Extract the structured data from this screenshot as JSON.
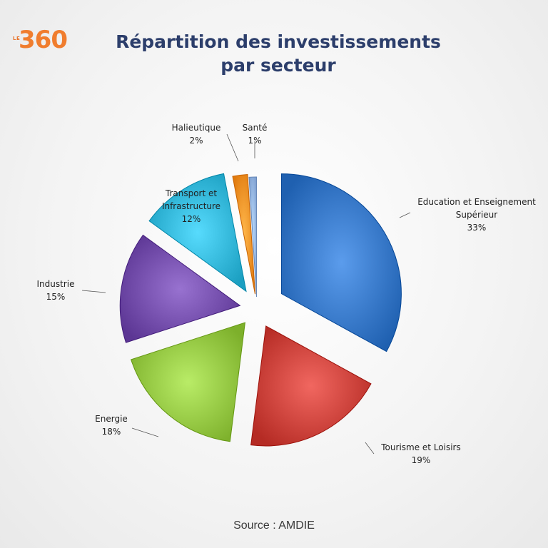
{
  "header": {
    "logo_prefix": "LE",
    "logo_number": "360",
    "title_line1": "Répartition des investissements",
    "title_line2": "par secteur"
  },
  "footer": {
    "source": "Source : AMDIE"
  },
  "chart_data": {
    "type": "pie",
    "title": "Répartition des investissements par secteur",
    "unit": "%",
    "slices": [
      {
        "label": "Education et Enseignement Supérieur",
        "label_lines": [
          "Education et Enseignement",
          "Supérieur"
        ],
        "value": 33,
        "value_label": "33%",
        "color": "#2e6fbf"
      },
      {
        "label": "Tourisme et Loisirs",
        "label_lines": [
          "Tourisme et Loisirs"
        ],
        "value": 19,
        "value_label": "19%",
        "color": "#c43a33"
      },
      {
        "label": "Energie",
        "label_lines": [
          "Energie"
        ],
        "value": 18,
        "value_label": "18%",
        "color": "#8cbf3a"
      },
      {
        "label": "Industrie",
        "label_lines": [
          "Industrie"
        ],
        "value": 15,
        "value_label": "15%",
        "color": "#6b45a3"
      },
      {
        "label": "Transport et Infrastructure",
        "label_lines": [
          "Transport et",
          "Infrastructure"
        ],
        "value": 12,
        "value_label": "12%",
        "color": "#2aaed0"
      },
      {
        "label": "Halieutique",
        "label_lines": [
          "Halieutique"
        ],
        "value": 2,
        "value_label": "2%",
        "color": "#f08a1e"
      },
      {
        "label": "Santé",
        "label_lines": [
          "Santé"
        ],
        "value": 1,
        "value_label": "1%",
        "color": "#8fb0e0"
      }
    ],
    "legend": "none",
    "labels_position": "outside with leader lines"
  }
}
